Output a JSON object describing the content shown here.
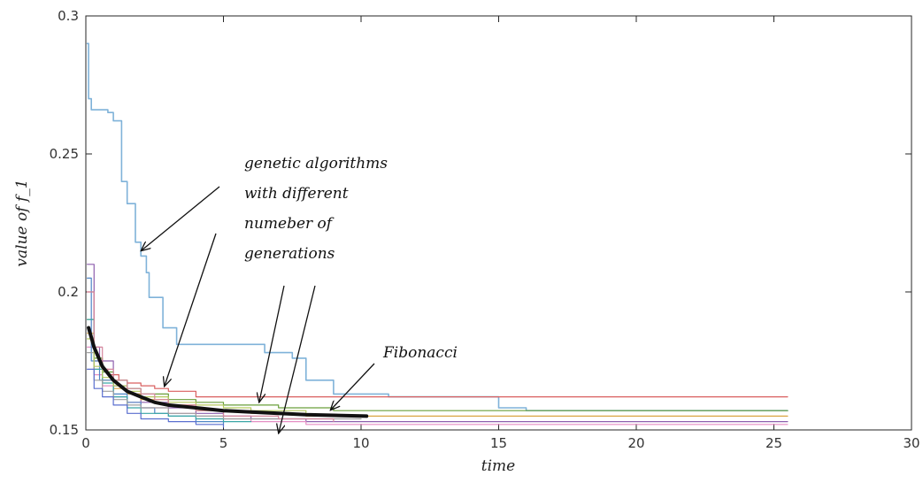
{
  "chart_data": {
    "type": "line",
    "title": "",
    "xlabel": "time",
    "ylabel": "value of f_1",
    "xlim": [
      0,
      30
    ],
    "ylim": [
      0.15,
      0.3
    ],
    "xticks": [
      "0",
      "5",
      "10",
      "15",
      "20",
      "25",
      "30"
    ],
    "yticks": [
      "0.15",
      "0.2",
      "0.25",
      "0.3"
    ],
    "grid": false,
    "legend": "none",
    "series": [
      {
        "color": "#7fb2d9",
        "width": 1.6,
        "x": [
          0.05,
          0.1,
          0.2,
          0.25,
          0.8,
          1,
          1.3,
          1.5,
          1.8,
          2,
          2.2,
          2.3,
          2.8,
          3.3,
          6.5,
          7.5,
          8,
          9,
          11,
          13,
          14,
          15,
          16,
          25.5
        ],
        "y": [
          0.29,
          0.27,
          0.266,
          0.266,
          0.265,
          0.262,
          0.24,
          0.232,
          0.218,
          0.213,
          0.207,
          0.198,
          0.187,
          0.181,
          0.178,
          0.176,
          0.168,
          0.163,
          0.162,
          0.162,
          0.162,
          0.158,
          0.157,
          0.157
        ]
      },
      {
        "color": "#d95f5f",
        "width": 1.2,
        "x": [
          0.05,
          0.3,
          0.6,
          0.8,
          1.2,
          1.5,
          2,
          2.5,
          3,
          4,
          25.5
        ],
        "y": [
          0.2,
          0.175,
          0.172,
          0.17,
          0.168,
          0.167,
          0.166,
          0.165,
          0.164,
          0.162,
          0.162
        ]
      },
      {
        "color": "#6a9f3a",
        "width": 1.2,
        "x": [
          0.05,
          0.3,
          0.6,
          1,
          1.5,
          2,
          3,
          4,
          5,
          7,
          9,
          25.5
        ],
        "y": [
          0.19,
          0.176,
          0.171,
          0.168,
          0.165,
          0.163,
          0.161,
          0.16,
          0.159,
          0.158,
          0.157,
          0.157
        ]
      },
      {
        "color": "#8e5fae",
        "width": 1.2,
        "x": [
          0.05,
          0.3,
          0.5,
          1,
          1.5,
          2,
          3,
          4,
          5,
          6,
          8,
          10,
          25.5
        ],
        "y": [
          0.21,
          0.18,
          0.175,
          0.166,
          0.163,
          0.16,
          0.158,
          0.156,
          0.155,
          0.154,
          0.153,
          0.153,
          0.153
        ]
      },
      {
        "color": "#d9a441",
        "width": 1.2,
        "x": [
          0.05,
          0.3,
          0.6,
          1,
          1.5,
          2,
          3,
          4,
          6,
          8,
          25.5
        ],
        "y": [
          0.185,
          0.172,
          0.168,
          0.165,
          0.163,
          0.161,
          0.159,
          0.157,
          0.156,
          0.155,
          0.155
        ]
      },
      {
        "color": "#e58fc4",
        "width": 1.2,
        "x": [
          0.05,
          0.3,
          0.6,
          1,
          1.5,
          2,
          3,
          4,
          5,
          6,
          8,
          10,
          25.5
        ],
        "y": [
          0.18,
          0.17,
          0.166,
          0.162,
          0.16,
          0.158,
          0.156,
          0.155,
          0.154,
          0.153,
          0.152,
          0.152,
          0.152
        ]
      },
      {
        "color": "#4f86c6",
        "width": 1.2,
        "x": [
          0.05,
          0.2,
          0.5,
          1,
          1.5,
          2,
          2.5,
          3,
          4,
          5
        ],
        "y": [
          0.205,
          0.175,
          0.168,
          0.163,
          0.16,
          0.158,
          0.156,
          0.155,
          0.153,
          0.152
        ]
      },
      {
        "color": "#3aa6a6",
        "width": 1.2,
        "x": [
          0.05,
          0.3,
          0.6,
          1,
          1.5,
          2,
          3,
          4,
          5,
          6
        ],
        "y": [
          0.19,
          0.172,
          0.167,
          0.162,
          0.158,
          0.156,
          0.155,
          0.154,
          0.153,
          0.153
        ]
      },
      {
        "color": "#a0a0a0",
        "width": 1.2,
        "x": [
          0.05,
          0.3,
          0.6,
          1,
          1.5,
          2,
          3,
          4,
          5,
          7,
          10
        ],
        "y": [
          0.178,
          0.168,
          0.164,
          0.161,
          0.159,
          0.158,
          0.156,
          0.155,
          0.154,
          0.154,
          0.154
        ]
      },
      {
        "color": "#b5c95f",
        "width": 1.2,
        "x": [
          0.05,
          0.3,
          0.6,
          1,
          1.5,
          2,
          3,
          4,
          5,
          6,
          8
        ],
        "y": [
          0.183,
          0.173,
          0.169,
          0.166,
          0.164,
          0.162,
          0.16,
          0.159,
          0.158,
          0.157,
          0.156
        ]
      },
      {
        "color": "#d4869c",
        "width": 1.2,
        "x": [
          0.05,
          0.3,
          0.6,
          1,
          1.5,
          2,
          2.5,
          3,
          4,
          5,
          7,
          9
        ],
        "y": [
          0.2,
          0.18,
          0.172,
          0.168,
          0.165,
          0.163,
          0.161,
          0.159,
          0.157,
          0.155,
          0.154,
          0.153
        ]
      },
      {
        "color": "#5a6fcf",
        "width": 1.2,
        "x": [
          0.05,
          0.3,
          0.6,
          1,
          1.5,
          2,
          3,
          4,
          5
        ],
        "y": [
          0.172,
          0.165,
          0.162,
          0.159,
          0.156,
          0.154,
          0.153,
          0.152,
          0.151
        ]
      },
      {
        "color": "#111111",
        "width": 4,
        "x": [
          0.1,
          0.3,
          0.6,
          1,
          1.5,
          2,
          2.5,
          3,
          4,
          5,
          6,
          7,
          8,
          9,
          10.2
        ],
        "y": [
          0.187,
          0.18,
          0.173,
          0.168,
          0.164,
          0.162,
          0.16,
          0.159,
          0.158,
          0.157,
          0.1565,
          0.156,
          0.1555,
          0.1553,
          0.155
        ]
      }
    ],
    "annotations": {
      "ga_lines": [
        "genetic algorithms",
        "with different",
        "numeber of",
        "generations"
      ],
      "fibonacci": "Fibonacci"
    }
  }
}
